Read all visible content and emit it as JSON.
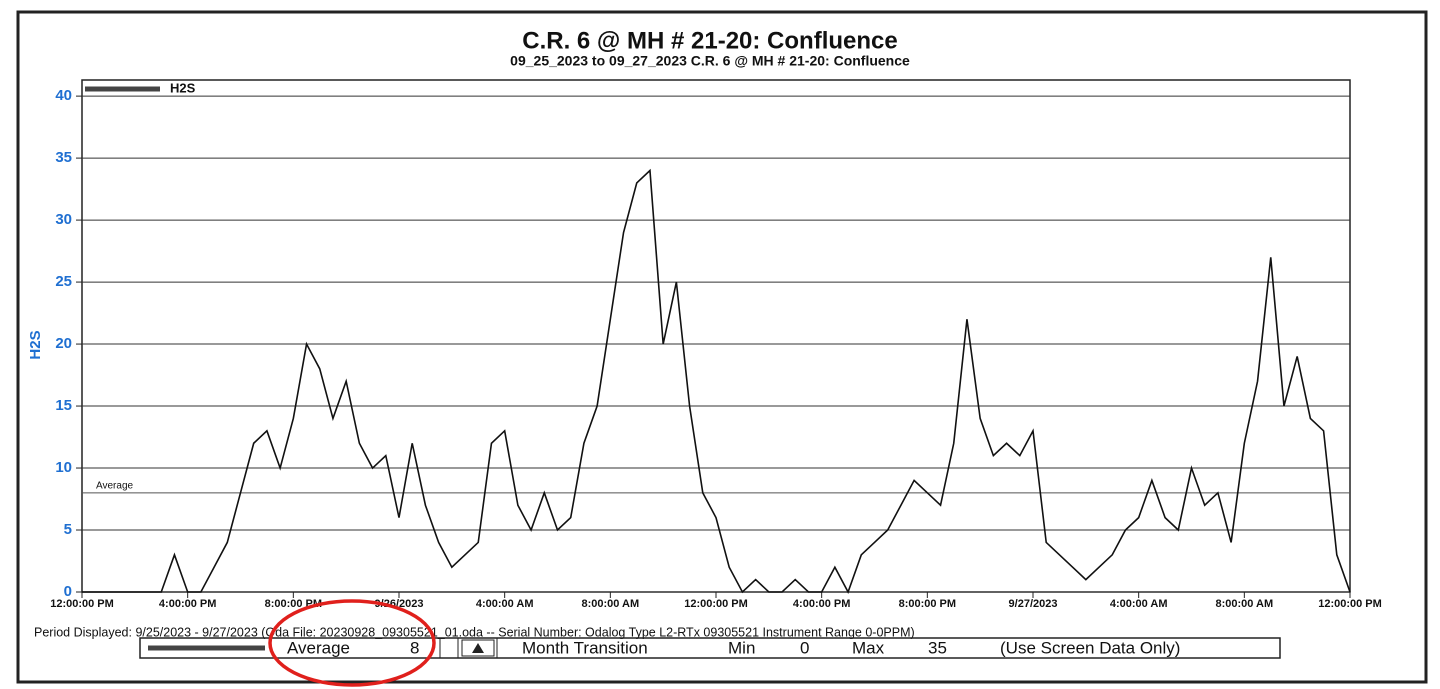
{
  "chart_data": {
    "type": "line",
    "title": "C.R. 6 @ MH # 21-20: Confluence",
    "subtitle": "09_25_2023 to 09_27_2023 C.R. 6 @ MH # 21-20: Confluence",
    "y_label": "H2S",
    "series": [
      {
        "name": "H2S",
        "color": "#111111",
        "values": [
          0,
          0,
          0,
          0,
          0,
          0,
          0,
          3,
          0,
          0,
          2,
          4,
          8,
          12,
          13,
          10,
          14,
          20,
          18,
          14,
          17,
          12,
          10,
          11,
          6,
          12,
          7,
          4,
          2,
          3,
          4,
          12,
          13,
          7,
          5,
          8,
          5,
          6,
          12,
          15,
          22,
          29,
          33,
          34,
          20,
          25,
          15,
          8,
          6,
          2,
          0,
          1,
          0,
          0,
          1,
          0,
          0,
          2,
          0,
          3,
          4,
          5,
          7,
          9,
          8,
          7,
          12,
          22,
          14,
          11,
          12,
          11,
          13,
          4,
          3,
          2,
          1,
          2,
          3,
          5,
          6,
          9,
          6,
          5,
          10,
          7,
          8,
          4,
          12,
          17,
          27,
          15,
          19,
          14,
          13,
          3,
          0
        ]
      }
    ],
    "x": [
      0,
      0.5,
      1,
      1.5,
      2,
      2.5,
      3,
      3.5,
      4,
      4.5,
      5,
      5.5,
      6,
      6.5,
      7,
      7.5,
      8,
      8.5,
      9,
      9.5,
      10,
      10.5,
      11,
      11.5,
      12,
      12.5,
      13,
      13.5,
      14,
      14.5,
      15,
      15.5,
      16,
      16.5,
      17,
      17.5,
      18,
      18.5,
      19,
      19.5,
      20,
      20.5,
      21,
      21.5,
      22,
      22.5,
      23,
      23.5,
      24,
      24.5,
      25,
      25.5,
      26,
      26.5,
      27,
      27.5,
      28,
      28.5,
      29,
      29.5,
      30,
      30.5,
      31,
      31.5,
      32,
      32.5,
      33,
      33.5,
      34,
      34.5,
      35,
      35.5,
      36,
      36.5,
      37,
      37.5,
      38,
      38.5,
      39,
      39.5,
      40,
      40.5,
      41,
      41.5,
      42,
      42.5,
      43,
      43.5,
      44,
      44.5,
      45,
      45.5,
      46,
      46.5,
      47,
      47.5,
      48
    ],
    "xlim": [
      0,
      48
    ],
    "xticks": [
      {
        "value": 0,
        "label": "12:00:00 PM"
      },
      {
        "value": 4,
        "label": "4:00:00 PM"
      },
      {
        "value": 8,
        "label": "8:00:00 PM"
      },
      {
        "value": 12,
        "label": "9/26/2023"
      },
      {
        "value": 16,
        "label": "4:00:00 AM"
      },
      {
        "value": 20,
        "label": "8:00:00 AM"
      },
      {
        "value": 24,
        "label": "12:00:00 PM"
      },
      {
        "value": 28,
        "label": "4:00:00 PM"
      },
      {
        "value": 32,
        "label": "8:00:00 PM"
      },
      {
        "value": 36,
        "label": "9/27/2023"
      },
      {
        "value": 40,
        "label": "4:00:00 AM"
      },
      {
        "value": 44,
        "label": "8:00:00 AM"
      },
      {
        "value": 48,
        "label": "12:00:00 PM"
      }
    ],
    "ylim": [
      0,
      41.3
    ],
    "yticks": [
      0,
      5,
      10,
      15,
      20,
      25,
      30,
      35,
      40
    ],
    "grid": true,
    "average_label": "Average",
    "average": 8,
    "footer": "Period Displayed: 9/25/2023 - 9/27/2023  (Oda File: 20230928_09305521_01.oda  --  Serial Number: Odalog Type L2-RTx 09305521 Instrument Range 0-0PPM)",
    "summary": {
      "average_label": "Average",
      "average": "8",
      "month_transition": "Month Transition",
      "min_label": "Min",
      "min": "0",
      "max_label": "Max",
      "max": "35",
      "note": "(Use Screen Data Only)"
    }
  }
}
